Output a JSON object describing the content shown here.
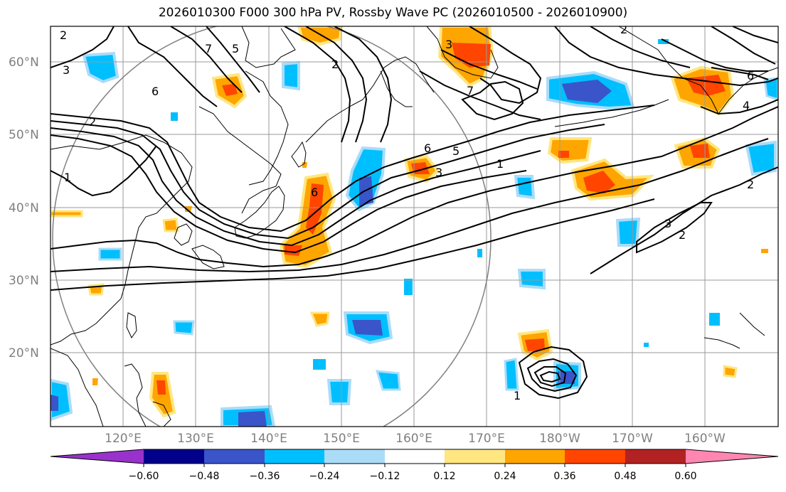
{
  "title": "2026010300 F000 300 hPa PV, Rossby Wave PC (2026010500 - 2026010900)",
  "lat_labels": [
    "60°N",
    "50°N",
    "40°N",
    "30°N",
    "20°N"
  ],
  "lon_labels": [
    "120°E",
    "130°E",
    "140°E",
    "150°E",
    "160°E",
    "170°E",
    "180°W",
    "170°W",
    "160°W"
  ],
  "colorbar": {
    "colors": [
      "#9932cc",
      "#00008b",
      "#3a55c9",
      "#00bfff",
      "#aadcf8",
      "#ffffff",
      "#ffe680",
      "#ffa500",
      "#ff4500",
      "#b22222",
      "#ff86b0"
    ],
    "ticks": [
      "−0.60",
      "−0.48",
      "−0.36",
      "−0.24",
      "−0.12",
      "0.12",
      "0.24",
      "0.36",
      "0.48",
      "0.60"
    ]
  },
  "contour_labels": [
    "2",
    "3",
    "7",
    "5",
    "6",
    "2",
    "1",
    "6",
    "3",
    "6",
    "5",
    "1",
    "2",
    "3",
    "7",
    "2",
    "4",
    "6",
    "2",
    "3",
    "2",
    "1"
  ]
}
